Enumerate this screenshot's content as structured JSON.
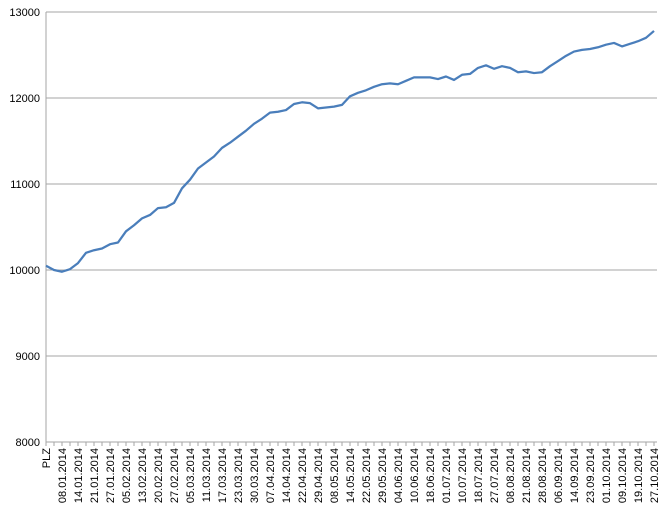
{
  "chart_data": {
    "type": "line",
    "categories": [
      "PLZ",
      null,
      "08.01.2014",
      null,
      "14.01.2014",
      null,
      "21.01.2014",
      null,
      "27.01.2014",
      null,
      "05.02.2014",
      null,
      "13.02.2014",
      null,
      "20.02.2014",
      null,
      "27.02.2014",
      null,
      "05.03.2014",
      null,
      "11.03.2014",
      null,
      "17.03.2014",
      null,
      "23.03.2014",
      null,
      "30.03.2014",
      null,
      "07.04.2014",
      null,
      "14.04.2014",
      null,
      "22.04.2014",
      null,
      "29.04.2014",
      null,
      "08.05.2014",
      null,
      "14.05.2014",
      null,
      "22.05.2014",
      null,
      "29.05.2014",
      null,
      "04.06.2014",
      null,
      "10.06.2014",
      null,
      "18.06.2014",
      null,
      "01.07.2014",
      null,
      "10.07.2014",
      null,
      "18.07.2014",
      null,
      "27.07.2014",
      null,
      "08.08.2014",
      null,
      "21.08.2014",
      null,
      "28.08.2014",
      null,
      "06.09.2014",
      null,
      "14.09.2014",
      null,
      "23.09.2014",
      null,
      "01.10.2014",
      null,
      "09.10.2014",
      null,
      "19.10.2014",
      null,
      "27.10.2014"
    ],
    "series": [
      {
        "color": "#4a7ebb",
        "values": [
          10050,
          10000,
          9980,
          10010,
          10080,
          10200,
          10230,
          10250,
          10300,
          10320,
          10450,
          10520,
          10600,
          10640,
          10720,
          10730,
          10780,
          10950,
          11050,
          11180,
          11250,
          11320,
          11420,
          11480,
          11550,
          11620,
          11700,
          11760,
          11830,
          11840,
          11860,
          11930,
          11950,
          11940,
          11880,
          11890,
          11900,
          11920,
          12020,
          12060,
          12090,
          12130,
          12160,
          12170,
          12160,
          12200,
          12240,
          12240,
          12240,
          12220,
          12250,
          12210,
          12270,
          12280,
          12350,
          12380,
          12340,
          12370,
          12350,
          12300,
          12310,
          12290,
          12300,
          12370,
          12430,
          12490,
          12540,
          12560,
          12570,
          12590,
          12620,
          12640,
          12600,
          12630,
          12660,
          12700,
          12780
        ]
      }
    ],
    "ylim": [
      8000,
      13000
    ],
    "yticks": [
      8000,
      9000,
      10000,
      11000,
      12000,
      13000
    ],
    "grid": true
  }
}
